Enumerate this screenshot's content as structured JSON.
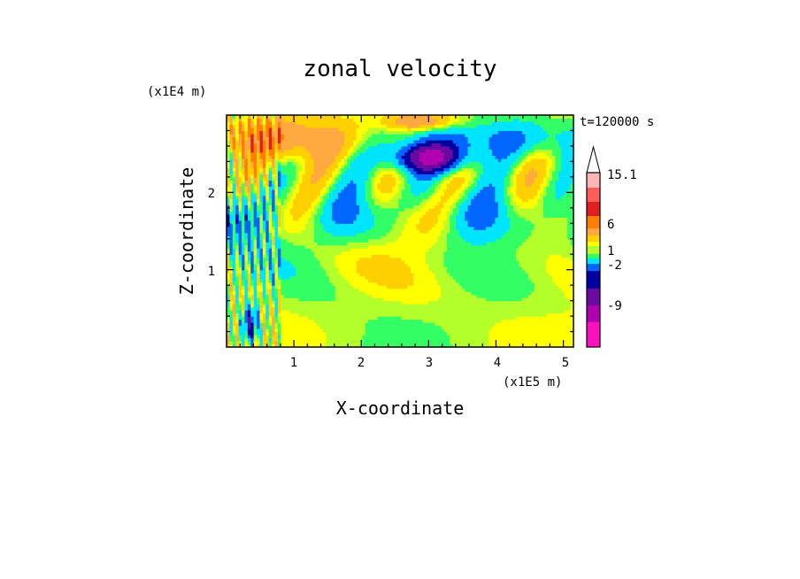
{
  "chart_data": {
    "type": "heatmap",
    "title": "zonal velocity",
    "xlabel": "X-coordinate",
    "ylabel": "Z-coordinate",
    "x_unit_label": "(x1E5 m)",
    "y_unit_label": "(x1E4 m)",
    "time_label": "t=120000 s",
    "x_ticks": [
      "1",
      "2",
      "3",
      "4",
      "5"
    ],
    "y_ticks": [
      "1",
      "2"
    ],
    "xlim": [
      0,
      5.15
    ],
    "ylim": [
      0,
      3.0
    ],
    "grid": false,
    "colorbar": {
      "labels": [
        "15.1",
        "6",
        "1",
        "-2",
        "-9"
      ],
      "levels_top_to_bottom": [
        {
          "color": "#ffffff",
          "value": 18
        },
        {
          "color": "#ffb6b6",
          "value": 13
        },
        {
          "color": "#ff5c5c",
          "value": 10
        },
        {
          "color": "#e02020",
          "value": 8
        },
        {
          "color": "#ff8000",
          "value": 6
        },
        {
          "color": "#ffaa40",
          "value": 4
        },
        {
          "color": "#ffd000",
          "value": 2
        },
        {
          "color": "#ffff00",
          "value": 1
        },
        {
          "color": "#b4ff2a",
          "value": 0.3
        },
        {
          "color": "#33ff66",
          "value": -0.5
        },
        {
          "color": "#00e5ff",
          "value": -2
        },
        {
          "color": "#0066ff",
          "value": -4
        },
        {
          "color": "#0000a0",
          "value": -6
        },
        {
          "color": "#6a0aa0",
          "value": -9
        },
        {
          "color": "#b000b0",
          "value": -12
        },
        {
          "color": "#ff10c0",
          "value": -16
        }
      ]
    }
  }
}
